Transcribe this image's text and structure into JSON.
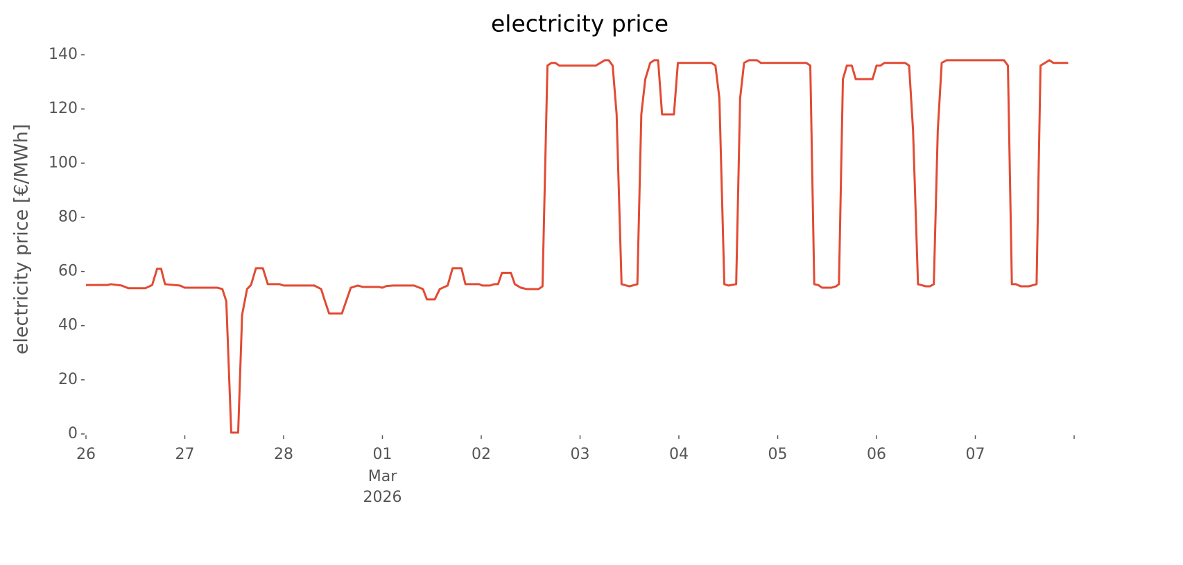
{
  "chart_data": {
    "type": "line",
    "title": "electricity price",
    "ylabel": "electricity price [€/MWh]",
    "x": [
      0,
      0.22,
      0.25,
      0.36,
      0.43,
      0.6,
      0.67,
      0.72,
      0.76,
      0.8,
      0.95,
      1.0,
      1.33,
      1.38,
      1.42,
      1.47,
      1.54,
      1.58,
      1.63,
      1.67,
      1.72,
      1.79,
      1.84,
      1.96,
      2.0,
      2.31,
      2.38,
      2.41,
      2.46,
      2.59,
      2.68,
      2.75,
      2.8,
      2.96,
      3.0,
      3.04,
      3.11,
      3.32,
      3.41,
      3.45,
      3.53,
      3.58,
      3.66,
      3.71,
      3.8,
      3.84,
      3.98,
      4.01,
      4.09,
      4.13,
      4.17,
      4.21,
      4.3,
      4.34,
      4.4,
      4.46,
      4.58,
      4.62,
      4.67,
      4.71,
      4.75,
      4.79,
      5.16,
      5.25,
      5.29,
      5.33,
      5.37,
      5.42,
      5.5,
      5.58,
      5.62,
      5.66,
      5.71,
      5.75,
      5.79,
      5.83,
      5.95,
      5.99,
      6.33,
      6.37,
      6.41,
      6.46,
      6.5,
      6.58,
      6.62,
      6.66,
      6.71,
      6.79,
      6.83,
      7.29,
      7.33,
      7.37,
      7.41,
      7.45,
      7.54,
      7.59,
      7.62,
      7.66,
      7.7,
      7.75,
      7.79,
      7.96,
      8.0,
      8.04,
      8.08,
      8.29,
      8.33,
      8.37,
      8.42,
      8.5,
      8.54,
      8.58,
      8.62,
      8.66,
      8.71,
      9.29,
      9.33,
      9.37,
      9.41,
      9.46,
      9.54,
      9.62,
      9.66,
      9.75,
      9.79,
      9.94
    ],
    "series": [
      {
        "name": "electricity price",
        "color": "#e24a33",
        "values": [
          55,
          55,
          55.3,
          54.8,
          53.8,
          53.8,
          55,
          61,
          61,
          55.3,
          54.8,
          54,
          54,
          53.5,
          49,
          0.5,
          0.5,
          44,
          53.5,
          55,
          61.2,
          61.2,
          55.3,
          55.3,
          54.8,
          54.8,
          53.5,
          50,
          44.5,
          44.5,
          54,
          54.8,
          54.3,
          54.3,
          54,
          54.6,
          54.8,
          54.8,
          53.5,
          49.7,
          49.7,
          53.5,
          54.8,
          61.2,
          61.2,
          55.3,
          55.3,
          54.8,
          54.8,
          55.3,
          55.3,
          59.5,
          59.5,
          55.3,
          54,
          53.5,
          53.5,
          54.5,
          136,
          137,
          137,
          136,
          136,
          138,
          138,
          136,
          118,
          55.3,
          54.5,
          55.3,
          118,
          131,
          137,
          138,
          138,
          118,
          118,
          137,
          137,
          136,
          124,
          55.3,
          54.8,
          55.3,
          124,
          137,
          138,
          138,
          137,
          137,
          136,
          55.3,
          55,
          54,
          54,
          54.5,
          55.3,
          131,
          136,
          136,
          131,
          131,
          136,
          136,
          137,
          137,
          136,
          112,
          55.3,
          54.5,
          54.5,
          55.3,
          112,
          137,
          138,
          138,
          136,
          55.3,
          55.3,
          54.5,
          54.5,
          55.3,
          136,
          138,
          137,
          137
        ]
      }
    ],
    "xlim": [
      0,
      10
    ],
    "xticks": [
      {
        "value": 0,
        "label": "26"
      },
      {
        "value": 1,
        "label": "27"
      },
      {
        "value": 2,
        "label": "28"
      },
      {
        "value": 3,
        "label": "01"
      },
      {
        "value": 4,
        "label": "02"
      },
      {
        "value": 5,
        "label": "03"
      },
      {
        "value": 6,
        "label": "04"
      },
      {
        "value": 7,
        "label": "05"
      },
      {
        "value": 8,
        "label": "06"
      },
      {
        "value": 9,
        "label": "07"
      },
      {
        "value": 10,
        "label": null
      }
    ],
    "xtick_sublabels": [
      "Mar",
      "2026"
    ],
    "ylim": [
      0,
      140
    ],
    "yticks": [
      0,
      20,
      40,
      60,
      80,
      100,
      120,
      140
    ],
    "grid": false
  }
}
